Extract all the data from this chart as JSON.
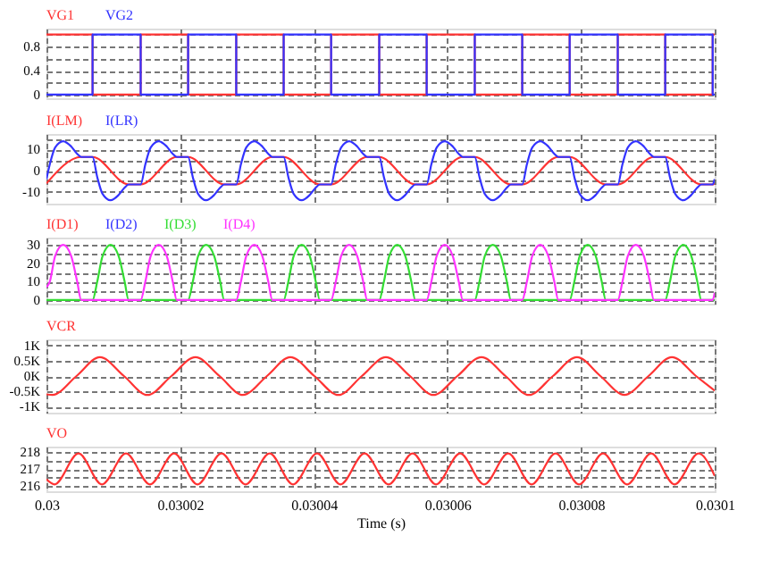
{
  "chart_data": [
    {
      "type": "step",
      "xlim": [
        0.03,
        0.0301
      ],
      "xticks": [
        0.03,
        0.03002,
        0.03004,
        0.03006,
        0.03008,
        0.0301
      ],
      "ylim": [
        -0.06,
        1.1
      ],
      "yticks": [
        0,
        {
          "value": 0.2,
          "label": null
        },
        0.4,
        {
          "value": 0.6,
          "label": null
        },
        0.8,
        {
          "value": 1,
          "label": null
        }
      ],
      "grid": true,
      "tick_labels": "y",
      "x": [
        0.03,
        0.0300069,
        0.0300141,
        0.0300212,
        0.0300284,
        0.0300355,
        0.0300426,
        0.0300498,
        0.0300569,
        0.0300641,
        0.0300712,
        0.0300783,
        0.0300855,
        0.0300926,
        0.0300997,
        0.0301
      ],
      "series": [
        {
          "name": "VG1",
          "color": "#ff3333",
          "values": [
            1,
            0,
            1,
            0,
            1,
            0,
            1,
            0,
            1,
            0,
            1,
            0,
            1,
            0,
            1,
            1
          ]
        },
        {
          "name": "VG2",
          "color": "#3333ff",
          "values": [
            0,
            1,
            0,
            1,
            0,
            1,
            0,
            1,
            0,
            1,
            0,
            1,
            0,
            1,
            0,
            0
          ]
        }
      ]
    },
    {
      "type": "line",
      "xlim": [
        0.03,
        0.0301
      ],
      "xticks": [
        0.03,
        0.03002,
        0.03004,
        0.03006,
        0.03008,
        0.0301
      ],
      "ylim": [
        -15.6,
        17.4
      ],
      "yticks": [
        -10,
        {
          "value": -5,
          "label": null
        },
        0,
        {
          "value": 5,
          "label": null
        },
        10,
        {
          "value": 15,
          "label": null
        }
      ],
      "grid": true,
      "tick_labels": "y",
      "series": [
        {
          "name": "I(LM)",
          "color": "#ff3333",
          "x": [
            0.03,
            0.0300052,
            0.0300069,
            0.0300123,
            0.0300141,
            0.0300195,
            0.0300212,
            0.0300266,
            0.0300284,
            0.0300338,
            0.0300355,
            0.0300409,
            0.0300426,
            0.030048,
            0.0300498,
            0.0300552,
            0.0300569,
            0.0300623,
            0.0300641,
            0.0300695,
            0.0300712,
            0.0300766,
            0.0300783,
            0.0300837,
            0.0300855,
            0.0300909,
            0.0300926,
            0.030098,
            0.0300997,
            0.0301
          ],
          "values": [
            -6,
            6.5,
            6.5,
            -6.5,
            -6.5,
            6.5,
            6.5,
            -6.5,
            -6.5,
            6.5,
            6.5,
            -6.5,
            -6.5,
            6.5,
            6.5,
            -6.5,
            -6.5,
            6.5,
            6.5,
            -6.5,
            -6.5,
            6.5,
            6.5,
            -6.5,
            -6.5,
            6.5,
            6.5,
            -6.5,
            -6.5,
            -6
          ]
        },
        {
          "name": "I(LR)",
          "color": "#3333ff",
          "x": [
            0.03,
            0.0300005,
            0.0300013,
            0.0300025,
            0.0300037,
            0.0300046,
            0.0300052,
            0.0300069,
            0.0300076,
            0.0300084,
            0.0300096,
            0.0300108,
            0.0300117,
            0.0300123,
            0.0300141,
            0.0300148,
            0.0300156,
            0.0300168,
            0.030018,
            0.0300189,
            0.0300195,
            0.0300212,
            0.0300219,
            0.0300227,
            0.0300239,
            0.0300251,
            0.030026,
            0.0300266,
            0.0300284,
            0.0300291,
            0.0300299,
            0.0300311,
            0.0300323,
            0.0300332,
            0.0300338,
            0.0300355,
            0.0300362,
            0.030037,
            0.0300382,
            0.0300394,
            0.0300403,
            0.0300409,
            0.0300426,
            0.0300433,
            0.0300441,
            0.0300453,
            0.0300465,
            0.0300474,
            0.030048,
            0.0300498,
            0.0300505,
            0.0300513,
            0.0300525,
            0.0300537,
            0.0300546,
            0.0300552,
            0.0300569,
            0.0300576,
            0.0300584,
            0.0300596,
            0.0300608,
            0.0300617,
            0.0300623,
            0.0300641,
            0.0300648,
            0.0300656,
            0.0300668,
            0.030068,
            0.0300689,
            0.0300695,
            0.0300712,
            0.0300719,
            0.0300727,
            0.0300739,
            0.0300751,
            0.030076,
            0.0300766,
            0.0300783,
            0.030079,
            0.0300798,
            0.030081,
            0.0300822,
            0.0300831,
            0.0300837,
            0.0300855,
            0.0300862,
            0.030087,
            0.0300882,
            0.0300894,
            0.0300903,
            0.0300909,
            0.0300926,
            0.0300933,
            0.0300941,
            0.0300953,
            0.0300965,
            0.0300974,
            0.030098,
            0.0300997,
            0.0301
          ],
          "values": [
            -4,
            3,
            11,
            14,
            11.5,
            8,
            6.5,
            6.5,
            -3,
            -11,
            -14,
            -11.5,
            -8,
            -6.5,
            -6.5,
            3,
            11,
            14,
            11.5,
            8,
            6.5,
            6.5,
            -3,
            -11,
            -14,
            -11.5,
            -8,
            -6.5,
            -6.5,
            3,
            11,
            14,
            11.5,
            8,
            6.5,
            6.5,
            -3,
            -11,
            -14,
            -11.5,
            -8,
            -6.5,
            -6.5,
            3,
            11,
            14,
            11.5,
            8,
            6.5,
            6.5,
            -3,
            -11,
            -14,
            -11.5,
            -8,
            -6.5,
            -6.5,
            3,
            11,
            14,
            11.5,
            8,
            6.5,
            6.5,
            -3,
            -11,
            -14,
            -11.5,
            -8,
            -6.5,
            -6.5,
            3,
            11,
            14,
            11.5,
            8,
            6.5,
            6.5,
            -3,
            -11,
            -14,
            -11.5,
            -8,
            -6.5,
            -6.5,
            3,
            11,
            14,
            11.5,
            8,
            6.5,
            6.5,
            -3,
            -11,
            -14,
            -11.5,
            -8,
            -6.5,
            -6.5,
            -4
          ]
        }
      ]
    },
    {
      "type": "line",
      "xlim": [
        0.03,
        0.0301
      ],
      "xticks": [
        0.03,
        0.03002,
        0.03004,
        0.03006,
        0.03008,
        0.0301
      ],
      "ylim": [
        -2,
        34
      ],
      "yticks": [
        0,
        {
          "value": 5,
          "label": null
        },
        10,
        {
          "value": 15,
          "label": null
        },
        20,
        {
          "value": 25,
          "label": null
        },
        30
      ],
      "grid": true,
      "tick_labels": "y",
      "series": [
        {
          "name": "I(D1)",
          "color": "#ff3333"
        },
        {
          "name": "I(D2)",
          "color": "#3333ff"
        },
        {
          "name": "I(D3)",
          "color": "#33dd33",
          "x": [
            0.03,
            0.0300069,
            0.0300076,
            0.0300084,
            0.0300096,
            0.0300108,
            0.0300117,
            0.0300123,
            0.0300212,
            0.0300219,
            0.0300227,
            0.0300239,
            0.0300251,
            0.030026,
            0.0300266,
            0.0300355,
            0.0300362,
            0.030037,
            0.0300382,
            0.0300394,
            0.0300403,
            0.0300409,
            0.0300498,
            0.0300505,
            0.0300513,
            0.0300525,
            0.0300537,
            0.0300546,
            0.0300552,
            0.0300641,
            0.0300648,
            0.0300656,
            0.0300668,
            0.030068,
            0.0300689,
            0.0300695,
            0.0300783,
            0.030079,
            0.0300798,
            0.030081,
            0.0300822,
            0.0300831,
            0.0300837,
            0.0300926,
            0.0300933,
            0.0300941,
            0.0300953,
            0.0300965,
            0.0300974,
            0.030098,
            0.0301
          ],
          "values": [
            0,
            0,
            10,
            24,
            30,
            24,
            10,
            0,
            0,
            10,
            24,
            30,
            24,
            10,
            0,
            0,
            10,
            24,
            30,
            24,
            10,
            0,
            0,
            10,
            24,
            30,
            24,
            10,
            0,
            0,
            10,
            24,
            30,
            24,
            10,
            0,
            0,
            10,
            24,
            30,
            24,
            10,
            0,
            0,
            10,
            24,
            30,
            24,
            10,
            0,
            0
          ]
        },
        {
          "name": "I(D4)",
          "color": "#ff33ff",
          "x": [
            0.03,
            0.0300005,
            0.0300013,
            0.0300025,
            0.0300037,
            0.0300046,
            0.0300052,
            0.0300141,
            0.0300148,
            0.0300156,
            0.0300168,
            0.030018,
            0.0300189,
            0.0300195,
            0.0300284,
            0.0300291,
            0.0300299,
            0.0300311,
            0.0300323,
            0.0300332,
            0.0300338,
            0.0300426,
            0.0300433,
            0.0300441,
            0.0300453,
            0.0300465,
            0.0300474,
            0.030048,
            0.0300569,
            0.0300576,
            0.0300584,
            0.0300596,
            0.0300608,
            0.0300617,
            0.0300623,
            0.0300712,
            0.0300719,
            0.0300727,
            0.0300739,
            0.0300751,
            0.030076,
            0.0300766,
            0.0300855,
            0.0300862,
            0.030087,
            0.0300882,
            0.0300894,
            0.0300903,
            0.0300909,
            0.0300997,
            0.0301
          ],
          "values": [
            7,
            10,
            24,
            30,
            24,
            10,
            0,
            0,
            10,
            24,
            30,
            24,
            10,
            0,
            0,
            10,
            24,
            30,
            24,
            10,
            0,
            0,
            10,
            24,
            30,
            24,
            10,
            0,
            0,
            10,
            24,
            30,
            24,
            10,
            0,
            0,
            10,
            24,
            30,
            24,
            10,
            0,
            0,
            10,
            24,
            30,
            24,
            10,
            0,
            0,
            4
          ]
        }
      ]
    },
    {
      "type": "line",
      "xlim": [
        0.03,
        0.0301
      ],
      "xticks": [
        0.03,
        0.03002,
        0.03004,
        0.03006,
        0.03008,
        0.0301
      ],
      "ylim": [
        -1200,
        1200
      ],
      "yticks": [
        {
          "value": 1000,
          "label": "1K"
        },
        {
          "value": 500,
          "label": "0.5K"
        },
        {
          "value": 0,
          "label": "0K"
        },
        {
          "value": -500,
          "label": "-0.5K"
        },
        {
          "value": -1000,
          "label": "-1K"
        }
      ],
      "grid": true,
      "tick_labels": "y",
      "series": [
        {
          "name": "VCR",
          "color": "#ff3333",
          "x": [
            0.03,
            0.0300009,
            0.0300045,
            0.030008,
            0.0300116,
            0.0300151,
            0.0300187,
            0.0300223,
            0.0300259,
            0.0300294,
            0.030033,
            0.0300365,
            0.0300401,
            0.0300437,
            0.0300472,
            0.0300508,
            0.0300544,
            0.0300579,
            0.0300615,
            0.0300651,
            0.0300687,
            0.0300722,
            0.0300758,
            0.0300794,
            0.0300829,
            0.0300865,
            0.0300901,
            0.0300936,
            0.0300972,
            0.0301
          ],
          "values": [
            -600,
            -620,
            0,
            620,
            0,
            -620,
            0,
            620,
            0,
            -620,
            0,
            620,
            0,
            -620,
            0,
            620,
            0,
            -620,
            0,
            620,
            0,
            -620,
            0,
            620,
            0,
            -620,
            0,
            620,
            0,
            -480
          ]
        }
      ]
    },
    {
      "type": "line",
      "xlabel": "Time (s)",
      "xlim": [
        0.03,
        0.0301
      ],
      "xticks": [
        0.03,
        0.03002,
        0.03004,
        0.03006,
        0.03008,
        0.0301
      ],
      "ylim": [
        215.7,
        218.3
      ],
      "yticks": [
        216,
        {
          "value": 216.5,
          "label": null
        },
        217,
        {
          "value": 217.5,
          "label": null
        },
        218
      ],
      "grid": true,
      "series": [
        {
          "name": "VO",
          "color": "#ff3333",
          "x": [
            0.03,
            0.0300012,
            0.0300048,
            0.0300083,
            0.0300119,
            0.0300155,
            0.0300191,
            0.0300226,
            0.0300262,
            0.0300298,
            0.0300334,
            0.0300369,
            0.0300405,
            0.030044,
            0.0300476,
            0.0300512,
            0.0300548,
            0.0300583,
            0.0300619,
            0.0300655,
            0.0300691,
            0.0300726,
            0.0300762,
            0.0300797,
            0.0300833,
            0.0300869,
            0.0300905,
            0.030094,
            0.0300976,
            0.0301
          ],
          "values": [
            216.4,
            216.1,
            217.9,
            216.1,
            217.9,
            216.1,
            217.9,
            216.1,
            217.9,
            216.1,
            217.9,
            216.1,
            217.9,
            216.1,
            217.9,
            216.1,
            217.9,
            216.1,
            217.9,
            216.1,
            217.9,
            216.1,
            217.9,
            216.1,
            217.9,
            216.1,
            217.9,
            216.1,
            217.9,
            216.6
          ]
        }
      ]
    }
  ]
}
